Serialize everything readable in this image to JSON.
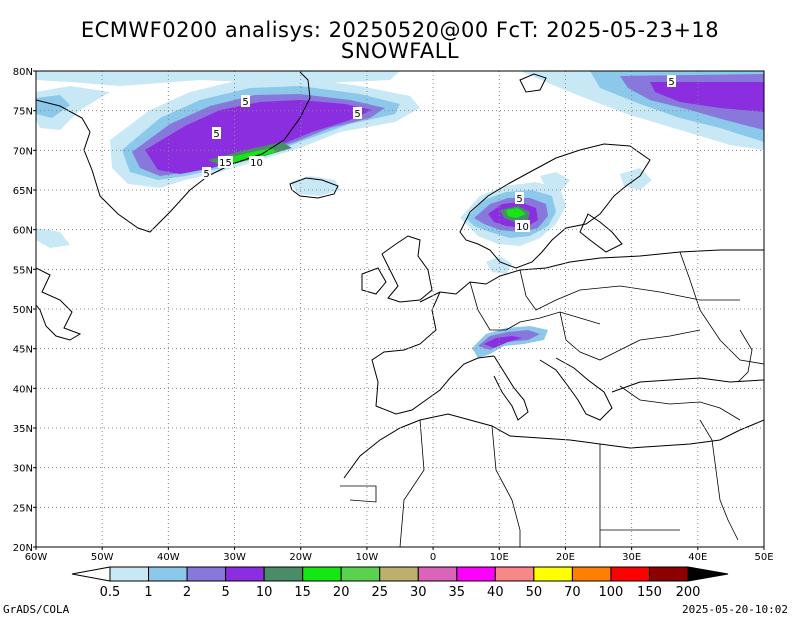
{
  "title": {
    "line1": "ECMWF0200 analisys: 20250520@00 FcT: 2025-05-23+18",
    "line2": "SNOWFALL"
  },
  "map": {
    "lat_labels": [
      "80N",
      "75N",
      "70N",
      "65N",
      "60N",
      "55N",
      "50N",
      "45N",
      "40N",
      "35N",
      "30N",
      "25N",
      "20N"
    ],
    "lon_labels": [
      "60W",
      "50W",
      "40W",
      "30W",
      "20W",
      "10W",
      "0",
      "10E",
      "20E",
      "30E",
      "40E",
      "50E"
    ],
    "contour_labels": [
      {
        "text": "5",
        "region": "greenland-north"
      },
      {
        "text": "5",
        "region": "greenland-east"
      },
      {
        "text": "5",
        "region": "greenland-west"
      },
      {
        "text": "15",
        "region": "greenland-coast"
      },
      {
        "text": "10",
        "region": "greenland-coast"
      },
      {
        "text": "5",
        "region": "greenland-south"
      },
      {
        "text": "5",
        "region": "scandinavia"
      },
      {
        "text": "10",
        "region": "scandinavia"
      },
      {
        "text": "5",
        "region": "arctic-east"
      }
    ]
  },
  "colorbar": {
    "labels": [
      "0.5",
      "1",
      "2",
      "5",
      "10",
      "15",
      "20",
      "25",
      "30",
      "35",
      "40",
      "50",
      "70",
      "100",
      "150",
      "200"
    ],
    "colors": [
      "#c8e8f6",
      "#8cc8ea",
      "#8878dc",
      "#8a2ee0",
      "#4a8c68",
      "#14e814",
      "#5ad250",
      "#bcb06c",
      "#dc64b8",
      "#ff00ff",
      "#f88888",
      "#ffff00",
      "#ff8000",
      "#ff0000",
      "#8c0000"
    ]
  },
  "footer": {
    "left": "GrADS/COLA",
    "right": "2025-05-20-10:02"
  }
}
